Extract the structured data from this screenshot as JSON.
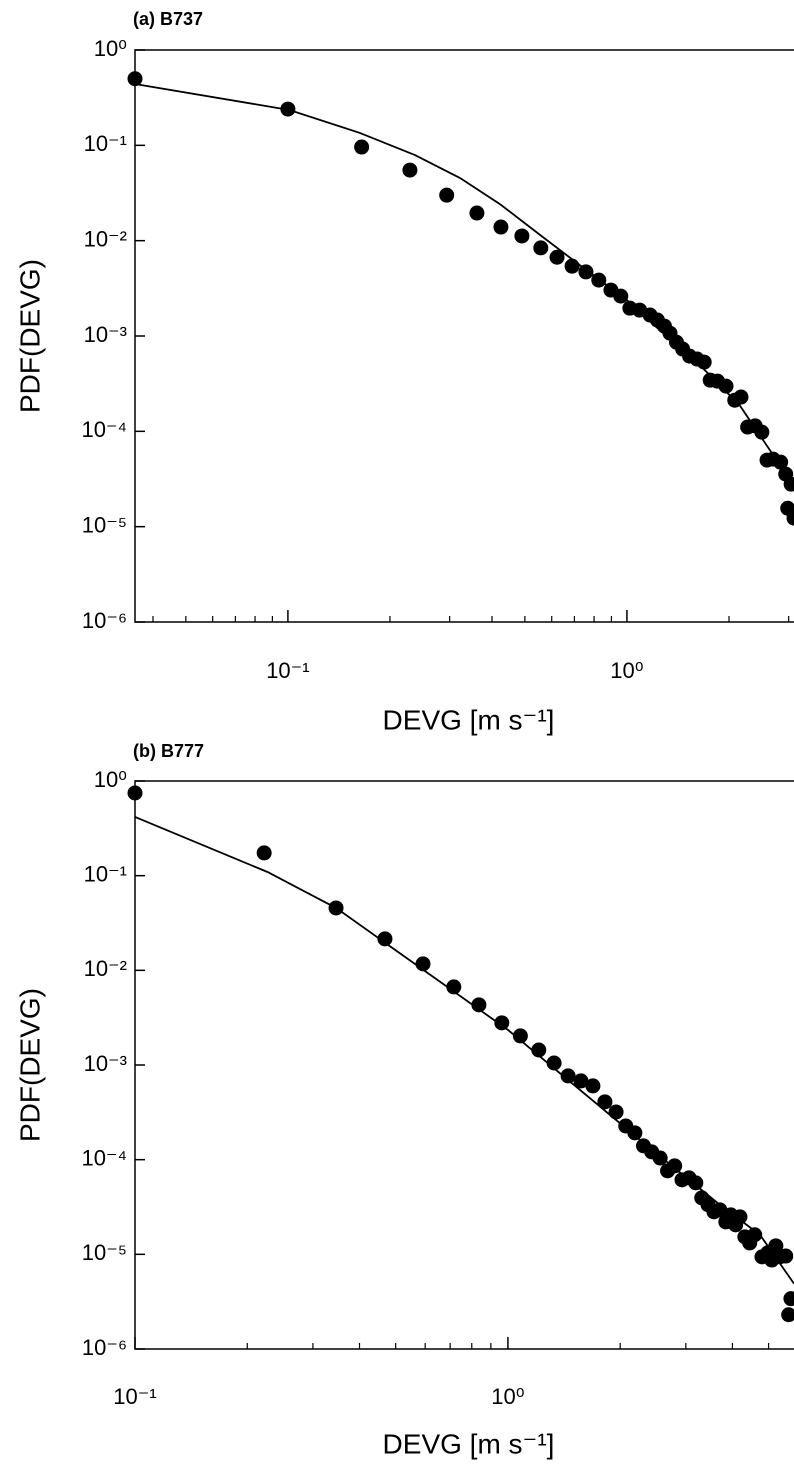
{
  "chart_data": [
    {
      "type": "scatter",
      "title": "(a) B737",
      "xlabel": "DEVG [m s⁻¹]",
      "ylabel": "PDF(DEVG)",
      "xscale": "log",
      "yscale": "log",
      "xlim": [
        0.0354,
        3.11
      ],
      "ylim": [
        1e-06,
        1
      ],
      "xticks": [
        {
          "value": 0.1,
          "label": "10⁻¹"
        },
        {
          "value": 1,
          "label": "10⁰"
        }
      ],
      "xminor_ticks": [
        0.04,
        0.05,
        0.06,
        0.07,
        0.08,
        0.09,
        0.2,
        0.3,
        0.4,
        0.5,
        0.6,
        0.7,
        0.8,
        0.9,
        2,
        3
      ],
      "yticks": [
        {
          "value": 1,
          "label": "10⁰"
        },
        {
          "value": 0.1,
          "label": "10⁻¹"
        },
        {
          "value": 0.01,
          "label": "10⁻²"
        },
        {
          "value": 0.001,
          "label": "10⁻³"
        },
        {
          "value": 0.0001,
          "label": "10⁻⁴"
        },
        {
          "value": 1e-05,
          "label": "10⁻⁵"
        },
        {
          "value": 1e-06,
          "label": "10⁻⁶"
        }
      ],
      "series": [
        {
          "kind": "markers",
          "color": "#000000",
          "x": [
            0.0354,
            0.1,
            0.165,
            0.229,
            0.294,
            0.361,
            0.425,
            0.49,
            0.557,
            0.622,
            0.689,
            0.757,
            0.826,
            0.897,
            0.959,
            1.02,
            1.09,
            1.17,
            1.23,
            1.29,
            1.34,
            1.4,
            1.46,
            1.53,
            1.61,
            1.69,
            1.76,
            1.85,
            1.96,
            2.08,
            2.17,
            2.27,
            2.39,
            2.5,
            2.59,
            2.7,
            2.84,
            2.94,
            3.05,
            2.98,
            3.11
          ],
          "values": [
            0.5,
            0.24,
            0.096,
            0.055,
            0.03,
            0.0195,
            0.0139,
            0.0112,
            0.0084,
            0.0067,
            0.0054,
            0.0047,
            0.00386,
            0.00303,
            0.00262,
            0.00196,
            0.00187,
            0.00166,
            0.00147,
            0.00127,
            0.00107,
            0.00086,
            0.00073,
            0.000615,
            0.000573,
            0.000532,
            0.000344,
            0.000336,
            0.000298,
            0.000212,
            0.000229,
            0.000111,
            0.000114,
            9.8e-05,
            4.99e-05,
            5.11e-05,
            4.75e-05,
            3.56e-05,
            2.79e-05,
            1.56e-05,
            1.23e-05
          ]
        },
        {
          "kind": "line",
          "color": "#000000",
          "x": [
            0.0354,
            0.101,
            0.163,
            0.237,
            0.322,
            0.422,
            0.554,
            0.726,
            1,
            1.25,
            1.64,
            2.15,
            2.64,
            3.11
          ],
          "values": [
            0.44,
            0.235,
            0.135,
            0.079,
            0.0454,
            0.0242,
            0.0115,
            0.00554,
            0.00238,
            0.00115,
            0.000495,
            0.000188,
            6.35e-05,
            2.72e-05
          ]
        }
      ]
    },
    {
      "type": "scatter",
      "title": "(b) B777",
      "xlabel": "DEVG [m s⁻¹]",
      "ylabel": "PDF(DEVG)",
      "xscale": "log",
      "yscale": "log",
      "xlim": [
        0.1,
        5.85
      ],
      "ylim": [
        1e-06,
        1
      ],
      "xticks": [
        {
          "value": 0.1,
          "label": "10⁻¹"
        },
        {
          "value": 1,
          "label": "10⁰"
        }
      ],
      "xminor_ticks": [
        0.2,
        0.3,
        0.4,
        0.5,
        0.6,
        0.7,
        0.8,
        0.9,
        2,
        3,
        4,
        5
      ],
      "yticks": [
        {
          "value": 1,
          "label": "10⁰"
        },
        {
          "value": 0.1,
          "label": "10⁻¹"
        },
        {
          "value": 0.01,
          "label": "10⁻²"
        },
        {
          "value": 0.001,
          "label": "10⁻³"
        },
        {
          "value": 0.0001,
          "label": "10⁻⁴"
        },
        {
          "value": 1e-05,
          "label": "10⁻⁵"
        },
        {
          "value": 1e-06,
          "label": "10⁻⁶"
        }
      ],
      "series": [
        {
          "kind": "markers",
          "color": "#000000",
          "x": [
            0.1,
            0.222,
            0.346,
            0.468,
            0.592,
            0.716,
            0.836,
            0.963,
            1.08,
            1.21,
            1.33,
            1.45,
            1.57,
            1.69,
            1.82,
            1.95,
            2.07,
            2.19,
            2.31,
            2.43,
            2.56,
            2.68,
            2.8,
            2.93,
            3.06,
            3.19,
            3.31,
            3.44,
            3.57,
            3.7,
            3.84,
            3.96,
            4.08,
            4.19,
            4.32,
            4.45,
            4.59,
            4.8,
            4.98,
            5.1,
            5.23,
            5.36,
            5.56,
            5.74,
            5.66
          ],
          "values": [
            0.747,
            0.174,
            0.0456,
            0.0215,
            0.0117,
            0.00668,
            0.00432,
            0.00279,
            0.00203,
            0.00144,
            0.00105,
            0.000767,
            0.000679,
            0.000601,
            0.000408,
            0.000319,
            0.000227,
            0.000192,
            0.00014,
            0.000121,
            0.000104,
            7.62e-05,
            8.61e-05,
            6.12e-05,
            6.43e-05,
            5.69e-05,
            3.95e-05,
            3.34e-05,
            2.81e-05,
            2.95e-05,
            2.2e-05,
            2.61e-05,
            2.05e-05,
            2.49e-05,
            1.53e-05,
            1.32e-05,
            1.61e-05,
            9.4e-06,
            1.04e-05,
            8.7e-06,
            1.23e-05,
            9.4e-06,
            9.6e-06,
            3.4e-06,
            2.3e-06
          ]
        },
        {
          "kind": "line",
          "color": "#000000",
          "x": [
            0.1,
            0.227,
            0.346,
            1,
            2.4,
            3.7,
            4.74,
            5.85
          ],
          "values": [
            0.417,
            0.109,
            0.0456,
            0.00235,
            0.000133,
            3.34e-05,
            1.61e-05,
            4.9e-06
          ]
        }
      ]
    }
  ]
}
